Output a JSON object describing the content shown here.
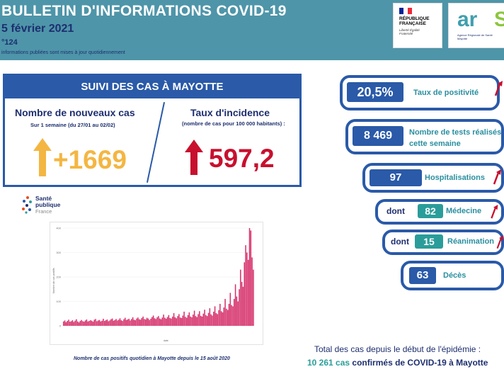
{
  "header": {
    "title": "BULLETIN D'INFORMATIONS COVID-19",
    "date": "5 février 2021",
    "number": "°124",
    "note": "informations publiées sont mises à jour quotidiennement"
  },
  "logos": {
    "rf_name": "RÉPUBLIQUE FRANÇAISE",
    "rf_motto": "Liberté Égalité Fraternité",
    "ars_word": "ar",
    "ars_s": "S",
    "ars_sub": "Agence Régionale de Santé Mayotte",
    "spf_name": "Santé publique",
    "spf_country": "France"
  },
  "cases": {
    "title": "SUIVI DES CAS À MAYOTTE",
    "new_cases_label": "Nombre de nouveaux cas",
    "new_cases_sub": "Sur 1 semaine (du 27/01 au 02/02)",
    "new_cases_value": "+1669",
    "incidence_label": "Taux d'incidence",
    "incidence_sub": "(nombre de cas pour 100 000 habitants) :",
    "incidence_value": "597,2"
  },
  "stats": {
    "positivity_value": "20,5%",
    "positivity_label": "Taux de positivité",
    "tests_value": "8 469",
    "tests_label_1": "Nombre de tests réalisés",
    "tests_label_2": "cette semaine",
    "hosp_value": "97",
    "hosp_label": "Hospitalisations",
    "med_prefix": "dont",
    "med_value": "82",
    "med_label": "Médecine",
    "rea_prefix": "dont",
    "rea_value": "15",
    "rea_label": "Réanimation",
    "deaths_value": "63",
    "deaths_label": "Décès"
  },
  "total": {
    "line1": "Total des cas depuis le début de l'épidémie :",
    "count": "10 261 cas",
    "line2_rest": " confirmés de COVID-19 à Mayotte"
  },
  "chart_caption": "Nombre de cas positifs quotidien à Mayotte depuis le 15 août 2020",
  "colors": {
    "header_bg": "#4e95a9",
    "navy": "#1d2f6f",
    "blue_border": "#2a5aa8",
    "orange": "#f4b642",
    "red": "#c8102e",
    "bar": "#d6336c",
    "teal": "#2a9d9a"
  },
  "chart_data": {
    "type": "bar",
    "title": "",
    "xlabel": "date",
    "ylabel": "Nombre de cas positifs",
    "ylim": [
      0,
      400
    ],
    "yticks": [
      0,
      100,
      200,
      300,
      400
    ],
    "series": [
      {
        "values": [
          18,
          22,
          15,
          20,
          25,
          17,
          19,
          23,
          16,
          21,
          27,
          18,
          14,
          20,
          24,
          19,
          17,
          22,
          26,
          18,
          20,
          23,
          21,
          17,
          25,
          28,
          19,
          22,
          24,
          18,
          21,
          29,
          20,
          23,
          26,
          19,
          22,
          27,
          30,
          21,
          24,
          28,
          22,
          25,
          31,
          23,
          20,
          27,
          33,
          24,
          26,
          29,
          22,
          28,
          35,
          25,
          23,
          30,
          34,
          27,
          25,
          32,
          38,
          28,
          26,
          33,
          30,
          24,
          29,
          36,
          42,
          31,
          28,
          35,
          40,
          30,
          27,
          34,
          46,
          33,
          29,
          36,
          44,
          32,
          30,
          38,
          52,
          35,
          31,
          40,
          48,
          34,
          32,
          42,
          58,
          37,
          33,
          44,
          55,
          38,
          35,
          46,
          62,
          40,
          36,
          48,
          60,
          41,
          38,
          50,
          66,
          44,
          40,
          53,
          72,
          47,
          42,
          58,
          80,
          52,
          48,
          64,
          90,
          60,
          55,
          75,
          110,
          70,
          65,
          90,
          135,
          85,
          80,
          110,
          170,
          120,
          100,
          150,
          230,
          180,
          160,
          260,
          330,
          300,
          270,
          400,
          390,
          280,
          230
        ]
      }
    ]
  }
}
